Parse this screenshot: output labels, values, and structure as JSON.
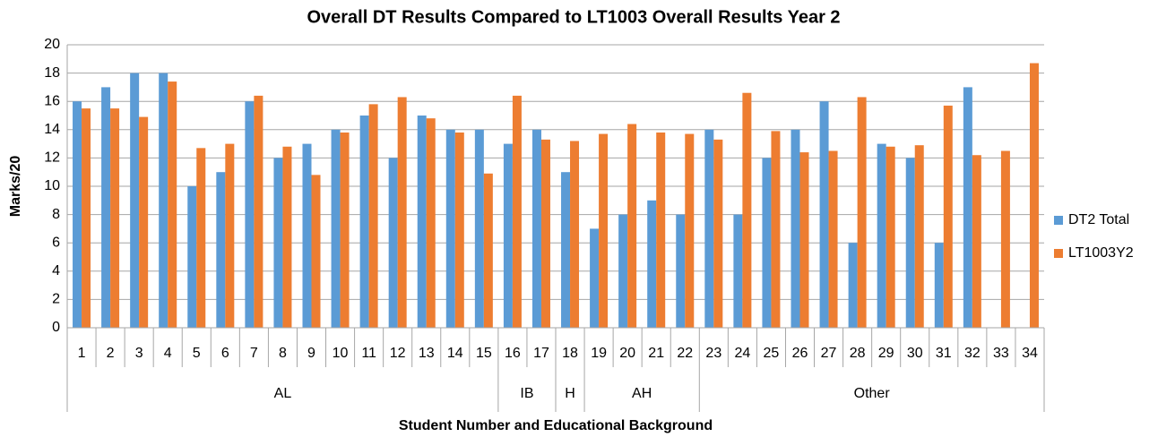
{
  "chart_data": {
    "type": "bar",
    "title": "Overall DT Results Compared to LT1003 Overall Results Year 2",
    "y_label": "Marks/20",
    "x_label": "Student Number and Educational Background",
    "groups": [
      {
        "label": "AL",
        "categories": [
          "1",
          "2",
          "3",
          "4",
          "5",
          "6",
          "7",
          "8",
          "9",
          "10",
          "11",
          "12",
          "13",
          "14",
          "15"
        ]
      },
      {
        "label": "IB",
        "categories": [
          "16",
          "17"
        ]
      },
      {
        "label": "H",
        "categories": [
          "18"
        ]
      },
      {
        "label": "AH",
        "categories": [
          "19",
          "20",
          "21",
          "22"
        ]
      },
      {
        "label": "Other",
        "categories": [
          "23",
          "24",
          "25",
          "26",
          "27",
          "28",
          "29",
          "30",
          "31",
          "32",
          "33",
          "34"
        ]
      }
    ],
    "series": [
      {
        "name": "DT2 Total",
        "color": "#5b9bd5",
        "values": [
          16,
          17,
          18,
          18,
          10,
          11,
          16,
          12,
          13,
          14,
          15,
          12,
          15,
          14,
          14,
          13,
          14,
          11,
          7,
          8,
          9,
          8,
          14,
          8,
          12,
          14,
          16,
          6,
          13,
          12,
          6,
          17,
          null,
          null
        ]
      },
      {
        "name": "LT1003Y2",
        "color": "#ed7d31",
        "values": [
          15.5,
          15.5,
          14.9,
          17.4,
          12.7,
          13.0,
          16.4,
          12.8,
          10.8,
          13.8,
          15.8,
          16.3,
          14.8,
          13.8,
          10.9,
          16.4,
          13.3,
          13.2,
          13.7,
          14.4,
          13.8,
          13.7,
          13.3,
          16.6,
          13.9,
          12.4,
          12.5,
          16.3,
          12.8,
          12.9,
          15.7,
          12.2,
          12.5,
          18.7
        ]
      }
    ],
    "ylim": [
      0,
      20
    ],
    "yticks": [
      0,
      2,
      4,
      6,
      8,
      10,
      12,
      14,
      16,
      18,
      20
    ],
    "grid": true,
    "legend": "right"
  }
}
